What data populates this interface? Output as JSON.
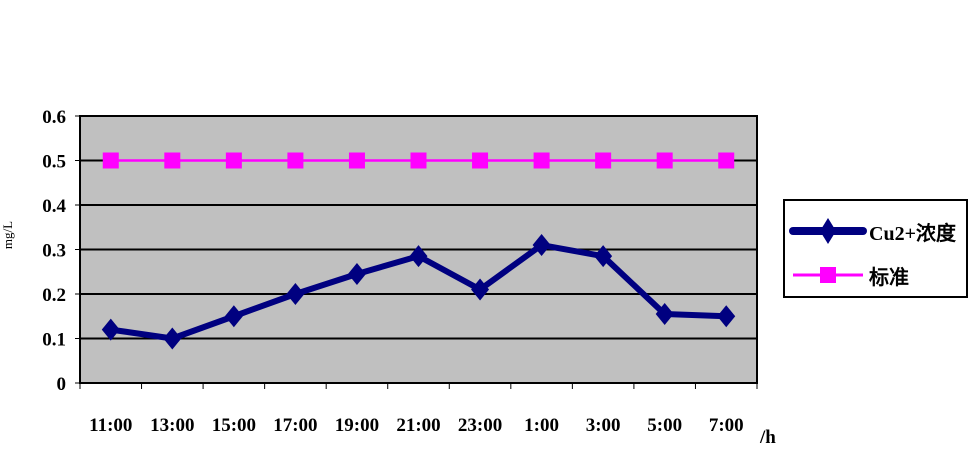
{
  "chart_data": {
    "type": "line",
    "title": "",
    "xlabel": "/h",
    "ylabel": "mg/L",
    "categories": [
      "11:00",
      "13:00",
      "15:00",
      "17:00",
      "19:00",
      "21:00",
      "23:00",
      "1:00",
      "3:00",
      "5:00",
      "7:00"
    ],
    "ylim": [
      0,
      0.6
    ],
    "yticks": [
      "0",
      "0.1",
      "0.2",
      "0.3",
      "0.4",
      "0.5",
      "0.6"
    ],
    "grid": true,
    "legend_position": "right",
    "plot_background": "#C0C0C0",
    "series": [
      {
        "name": "Cu2+浓度",
        "color": "#000080",
        "marker": "diamond",
        "values": [
          0.12,
          0.1,
          0.15,
          0.2,
          0.245,
          0.285,
          0.21,
          0.31,
          0.285,
          0.155,
          0.15
        ]
      },
      {
        "name": "标准",
        "color": "#FF00FF",
        "marker": "square",
        "values": [
          0.5,
          0.5,
          0.5,
          0.5,
          0.5,
          0.5,
          0.5,
          0.5,
          0.5,
          0.5,
          0.5
        ]
      }
    ]
  }
}
